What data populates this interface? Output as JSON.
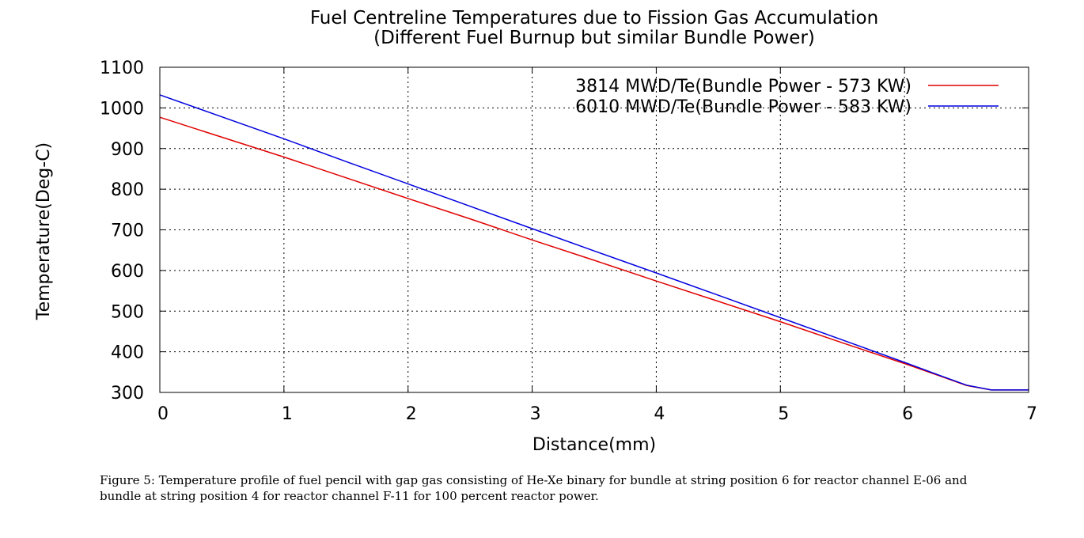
{
  "chart_data": {
    "type": "line",
    "title": "Fuel Centreline Temperatures due to Fission Gas Accumulation",
    "subtitle": "(Different Fuel Burnup but similar Bundle Power)",
    "xlabel": "Distance(mm)",
    "ylabel": "Temperature(Deg-C)",
    "xlim": [
      0,
      7
    ],
    "ylim": [
      300,
      1100
    ],
    "xticks": [
      "0",
      "1",
      "2",
      "3",
      "4",
      "5",
      "6",
      "7"
    ],
    "yticks": [
      "300",
      "400",
      "500",
      "600",
      "700",
      "800",
      "900",
      "1000",
      "1100"
    ],
    "grid": true,
    "legend_position": "top-right",
    "series": [
      {
        "name": "3814 MWD/Te(Bundle Power - 573 KW)",
        "color": "#e00000",
        "x": [
          0,
          0.5,
          1,
          1.5,
          2,
          2.5,
          3,
          3.5,
          4,
          4.5,
          5,
          5.5,
          6,
          6.3,
          6.5,
          6.7,
          7
        ],
        "y": [
          977,
          928,
          879,
          828,
          777,
          727,
          675,
          625,
          574,
          524,
          474,
          422,
          371,
          339,
          317,
          306,
          306
        ]
      },
      {
        "name": "6010 MWD/Te(Bundle Power - 583 KW)",
        "color": "#0000e0",
        "x": [
          0,
          0.5,
          1,
          1.5,
          2,
          2.5,
          3,
          3.5,
          4,
          4.5,
          5,
          5.5,
          6,
          6.3,
          6.5,
          6.7,
          7
        ],
        "y": [
          1032,
          978,
          924,
          868,
          813,
          758,
          703,
          648,
          594,
          539,
          484,
          429,
          374,
          340,
          318,
          306,
          306
        ]
      }
    ]
  },
  "caption": "Figure 5: Temperature profile of fuel pencil with gap gas consisting of He-Xe binary for bundle at string position 6 for reactor channel E-06 and bundle at string position 4 for reactor channel F-11 for 100 percent reactor power."
}
